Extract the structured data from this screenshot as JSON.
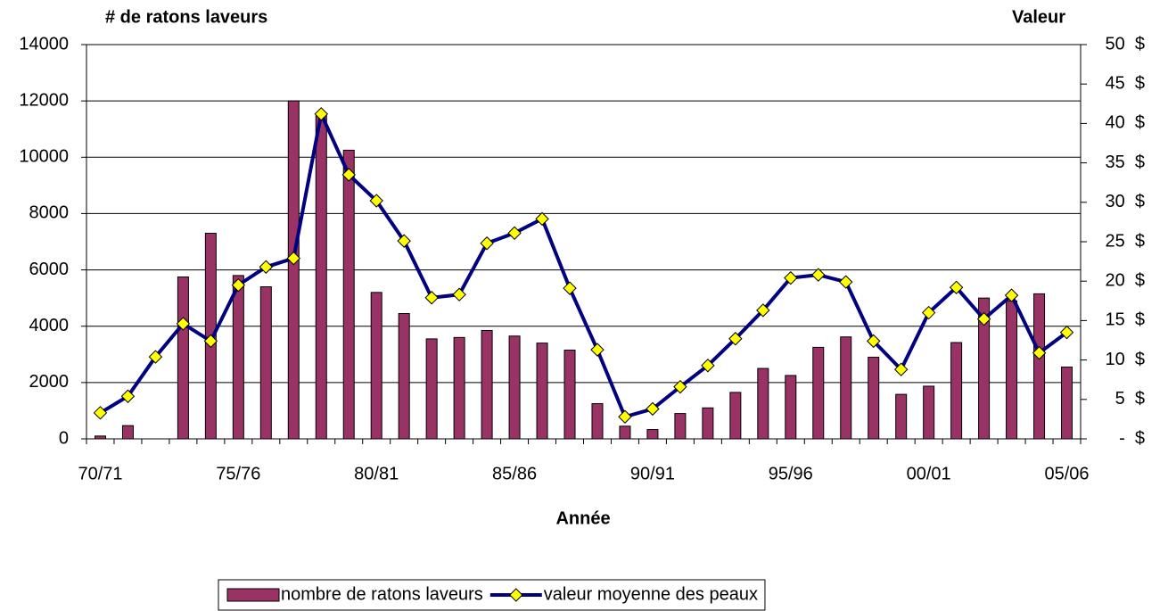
{
  "chart_data": {
    "type": "bar",
    "y_label": "# de ratons laveurs",
    "y2_label": "Valeur",
    "x_label": "Année",
    "categories": [
      "70/71",
      null,
      null,
      null,
      null,
      "75/76",
      null,
      null,
      null,
      null,
      "80/81",
      null,
      null,
      null,
      null,
      "85/86",
      null,
      null,
      null,
      null,
      "90/91",
      null,
      null,
      null,
      null,
      "95/96",
      null,
      null,
      null,
      null,
      "00/01",
      null,
      null,
      null,
      null,
      "05/06"
    ],
    "series": [
      {
        "name": "nombre de ratons laveurs",
        "type": "bar",
        "color": "#993366",
        "values": [
          100,
          470,
          0,
          5750,
          7300,
          5800,
          5400,
          12000,
          11500,
          10250,
          5200,
          4450,
          3550,
          3600,
          3850,
          3650,
          3400,
          3150,
          1250,
          450,
          330,
          900,
          1100,
          1650,
          2500,
          2250,
          3250,
          3620,
          2900,
          1580,
          1870,
          3420,
          5000,
          4900,
          5150,
          2550
        ]
      },
      {
        "name": "valeur moyenne des peaux",
        "type": "line",
        "axis": "y2",
        "color": "#000080",
        "marker_color": "#ffff00",
        "values": [
          3.3,
          5.4,
          10.4,
          14.6,
          12.4,
          19.5,
          21.8,
          22.9,
          41.2,
          33.5,
          30.2,
          25.1,
          17.9,
          18.3,
          24.8,
          26.1,
          27.9,
          19.1,
          11.3,
          2.8,
          3.8,
          6.6,
          9.3,
          12.7,
          16.3,
          20.4,
          20.8,
          19.9,
          12.4,
          8.8,
          16.0,
          19.2,
          15.2,
          18.2,
          10.9,
          13.5
        ]
      }
    ],
    "ylim": [
      0,
      14000
    ],
    "yticks": [
      0,
      2000,
      4000,
      6000,
      8000,
      10000,
      12000,
      14000
    ],
    "y2lim": [
      0,
      50
    ],
    "y2ticks": [
      {
        "value": 0,
        "label": "-  $"
      },
      {
        "value": 5,
        "label": "5  $"
      },
      {
        "value": 10,
        "label": "10  $"
      },
      {
        "value": 15,
        "label": "15  $"
      },
      {
        "value": 20,
        "label": "20  $"
      },
      {
        "value": 25,
        "label": "25  $"
      },
      {
        "value": 30,
        "label": "30  $"
      },
      {
        "value": 35,
        "label": "35  $"
      },
      {
        "value": 40,
        "label": "40  $"
      },
      {
        "value": 45,
        "label": "45  $"
      },
      {
        "value": 50,
        "label": "50  $"
      }
    ],
    "grid": true,
    "legend": "bottom"
  }
}
